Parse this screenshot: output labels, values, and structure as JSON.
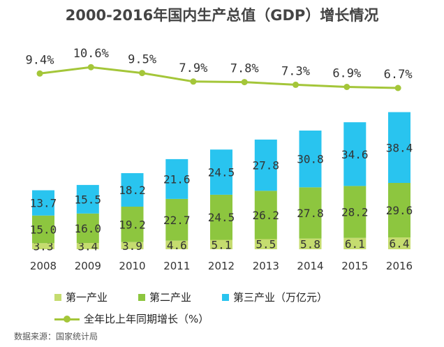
{
  "chart_data": {
    "type": "bar",
    "title": "2000-2016年国内生产总值（GDP）增长情况",
    "categories": [
      "2008",
      "2009",
      "2010",
      "2011",
      "2012",
      "2013",
      "2014",
      "2015",
      "2016"
    ],
    "stacked": true,
    "series": [
      {
        "name": "第一产业",
        "color": "#c5dc6f",
        "values": [
          3.3,
          3.4,
          3.9,
          4.6,
          5.1,
          5.5,
          5.8,
          6.1,
          6.4
        ]
      },
      {
        "name": "第二产业",
        "color": "#8dc63f",
        "values": [
          15.0,
          16.0,
          19.2,
          22.7,
          24.5,
          26.2,
          27.8,
          28.2,
          29.6
        ]
      },
      {
        "name": "第三产业（万亿元）",
        "color": "#29c4ef",
        "values": [
          13.7,
          15.5,
          18.2,
          21.6,
          24.5,
          27.8,
          30.8,
          34.6,
          38.4
        ]
      }
    ],
    "bar_value_labels": [
      [
        "3.3",
        "3.4",
        "3.9",
        "4.6",
        "5.1",
        "5.5",
        "5.8",
        "6.1",
        "6.4"
      ],
      [
        "15.0",
        "16.0",
        "19.2",
        "22.7",
        "24.5",
        "26.2",
        "27.8",
        "28.2",
        "29.6"
      ],
      [
        "13.7",
        "15.5",
        "18.2",
        "21.6",
        "24.5",
        "27.8",
        "30.8",
        "34.6",
        "38.4"
      ]
    ],
    "line_series": {
      "name": "全年比上年同期增长（%）",
      "color": "#a4c639",
      "values": [
        9.4,
        10.6,
        9.5,
        7.9,
        7.8,
        7.3,
        6.9,
        6.7
      ],
      "labels": [
        "9.4%",
        "10.6%",
        "9.5%",
        "7.9%",
        "7.8%",
        "7.3%",
        "6.9%",
        "6.7%"
      ]
    },
    "legend_position": "bottom",
    "grid": false
  },
  "source_note": "数据来源：国家统计局"
}
